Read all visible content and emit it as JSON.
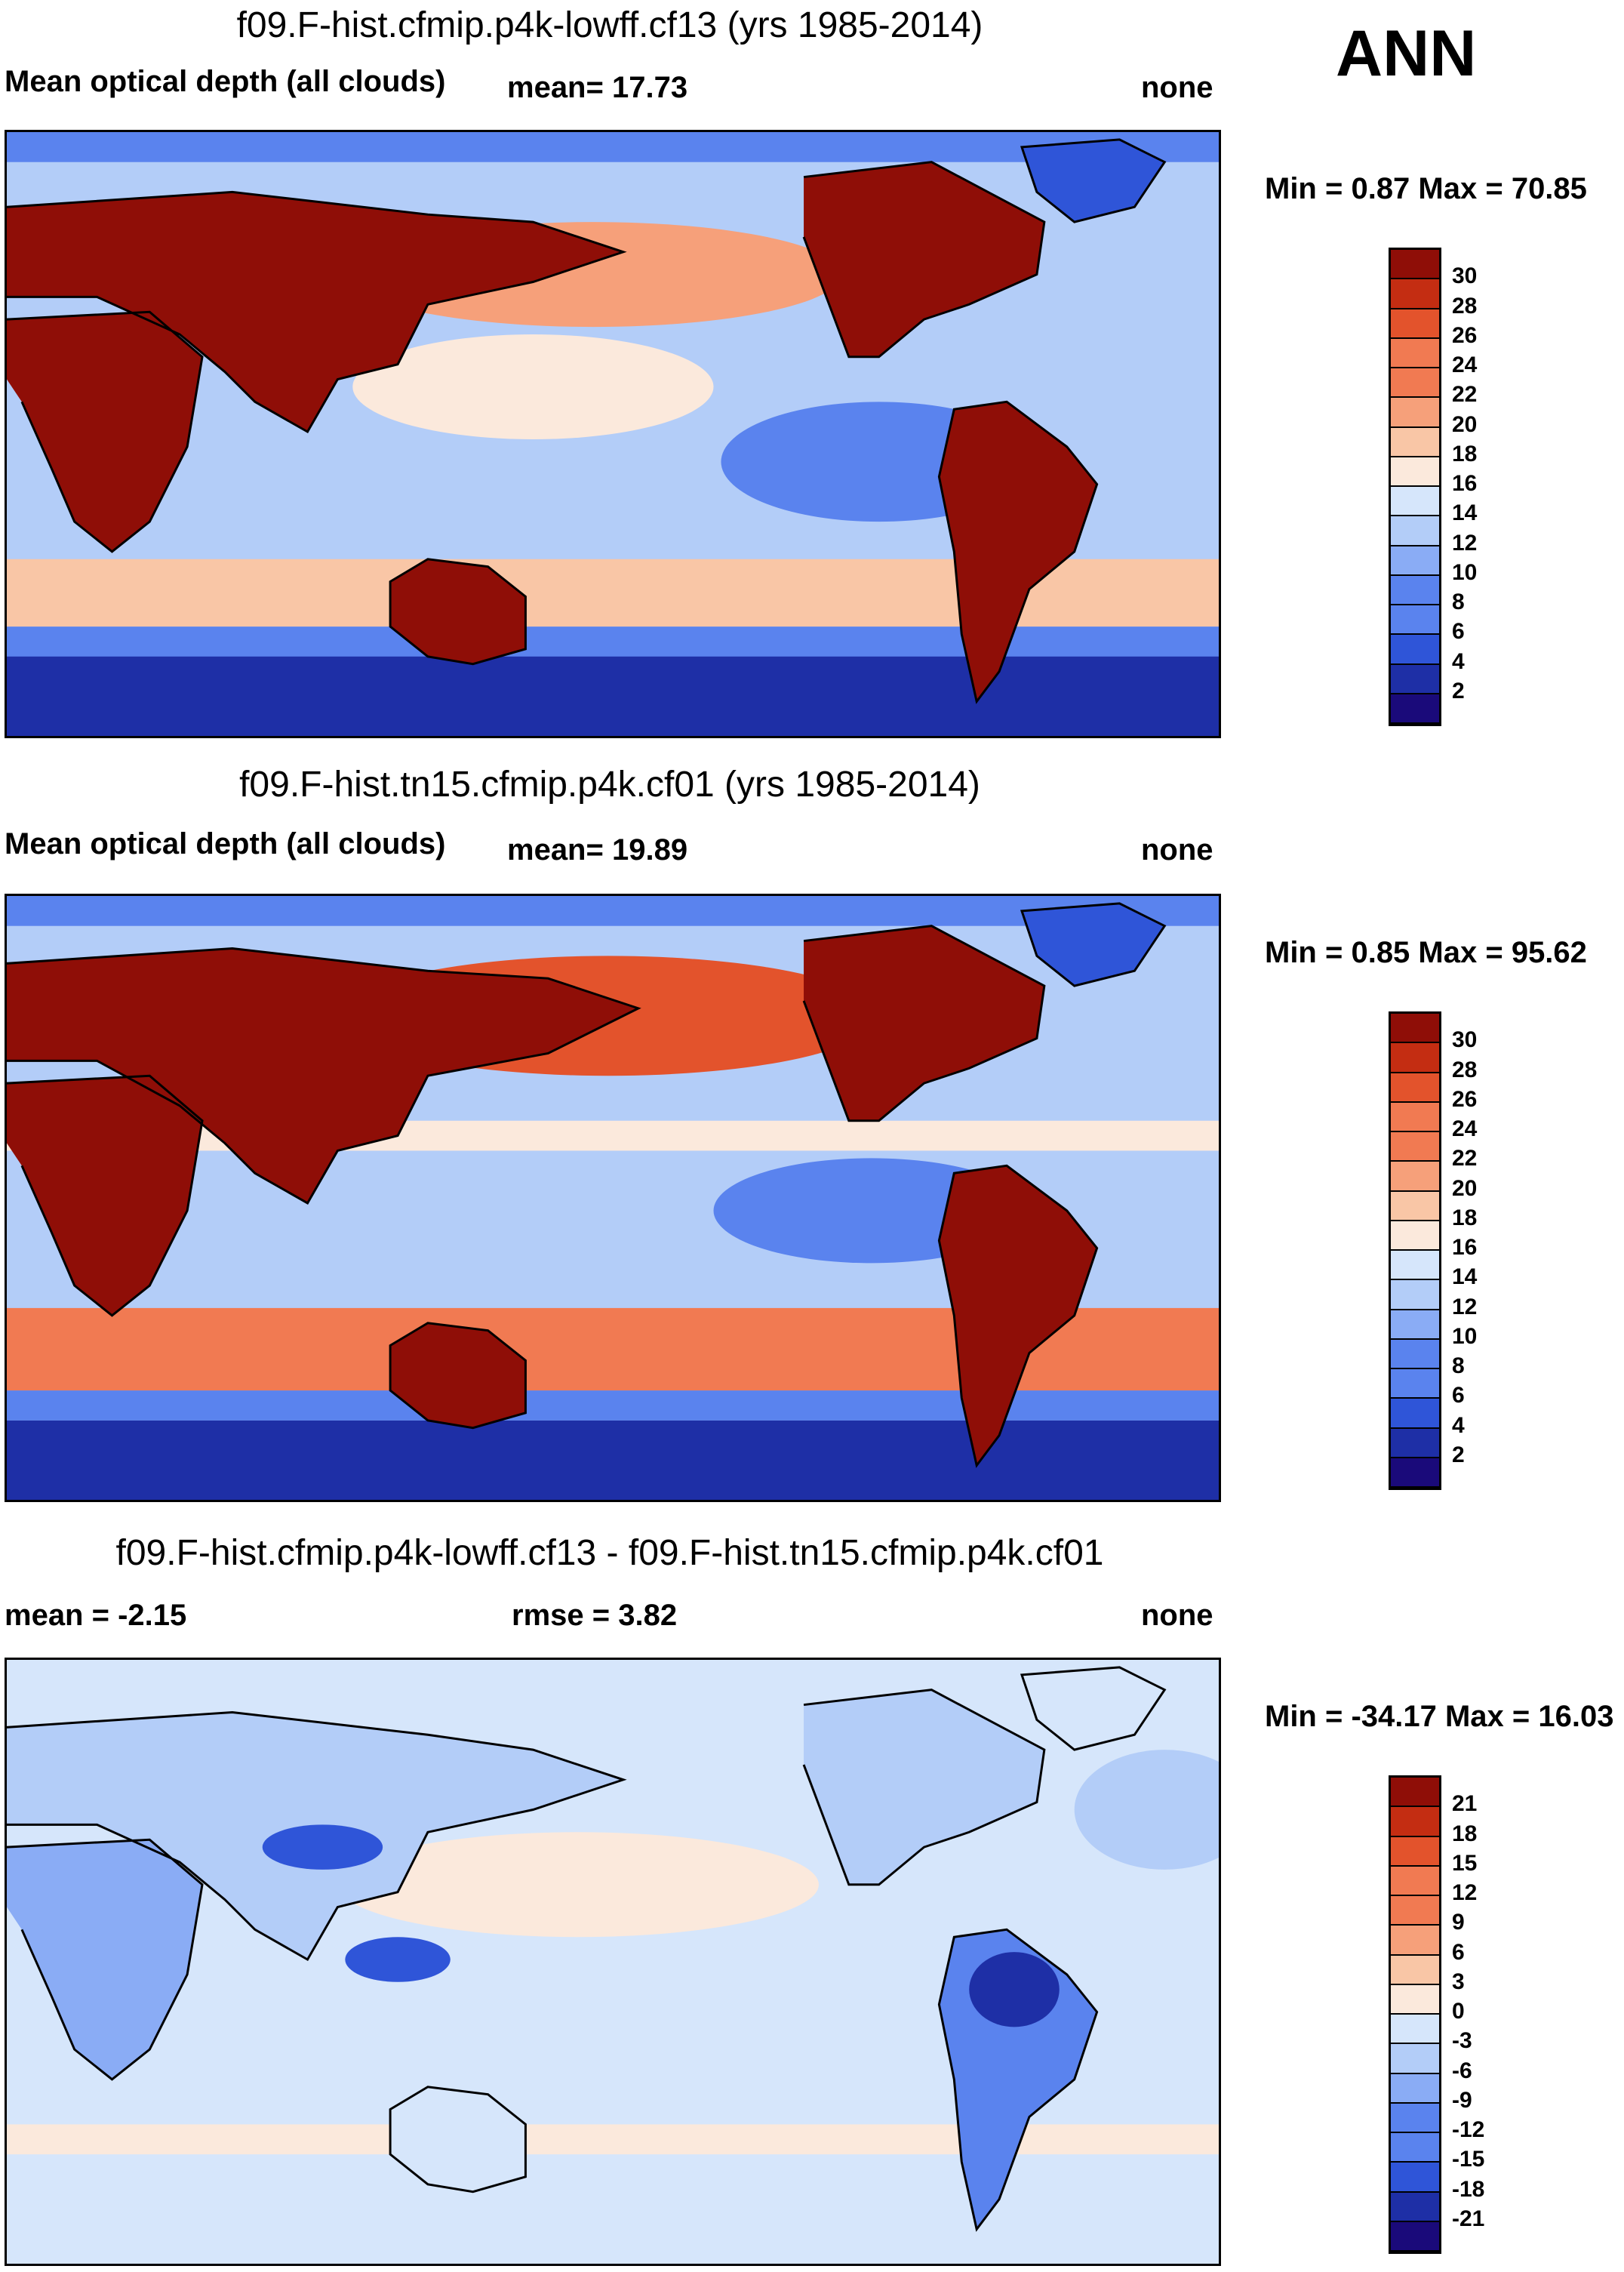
{
  "season": "ANN",
  "colors": {
    "optical": [
      "#1a0a7a",
      "#1e2fa6",
      "#2f55d8",
      "#5a83ee",
      "#8aacf5",
      "#b3cdf8",
      "#d6e6fb",
      "#fbe9dc",
      "#f9c6a6",
      "#f6a07a",
      "#f17a52",
      "#e3532c",
      "#c42d12",
      "#8f0e07"
    ],
    "diff": [
      "#1a0a7a",
      "#1e2fa6",
      "#2f55d8",
      "#5a83ee",
      "#8aacf5",
      "#b3cdf8",
      "#d6e6fb",
      "#fbe9dc",
      "#f9c6a6",
      "#f6a07a",
      "#f17a52",
      "#e3532c",
      "#c42d12",
      "#8f0e07"
    ]
  },
  "chart_data": [
    {
      "type": "heatmap",
      "title": "f09.F-hist.cfmip.p4k-lowff.cf13 (yrs 1985-2014)",
      "left_label": "Mean optical depth (all clouds)",
      "mean_text": "mean=  17.73",
      "units_text": "none",
      "minmax_text": "Min =   0.87 Max =  70.85",
      "colorbar_levels": [
        "30",
        "28",
        "26",
        "24",
        "22",
        "20",
        "18",
        "16",
        "14",
        "12",
        "10",
        "8",
        "6",
        "4",
        "2"
      ]
    },
    {
      "type": "heatmap",
      "title": "f09.F-hist.tn15.cfmip.p4k.cf01 (yrs 1985-2014)",
      "left_label": "Mean optical depth (all clouds)",
      "mean_text": "mean=  19.89",
      "units_text": "none",
      "minmax_text": "Min =   0.85 Max =  95.62",
      "colorbar_levels": [
        "30",
        "28",
        "26",
        "24",
        "22",
        "20",
        "18",
        "16",
        "14",
        "12",
        "10",
        "8",
        "6",
        "4",
        "2"
      ]
    },
    {
      "type": "heatmap",
      "title": "f09.F-hist.cfmip.p4k-lowff.cf13 - f09.F-hist.tn15.cfmip.p4k.cf01",
      "left_label": "mean =  -2.15",
      "rmse_text": "rmse =    3.82",
      "units_text": "none",
      "minmax_text": "Min = -34.17 Max =  16.03",
      "colorbar_levels": [
        "21",
        "18",
        "15",
        "12",
        "9",
        "6",
        "3",
        "0",
        "-3",
        "-6",
        "-9",
        "-12",
        "-15",
        "-18",
        "-21"
      ]
    }
  ]
}
